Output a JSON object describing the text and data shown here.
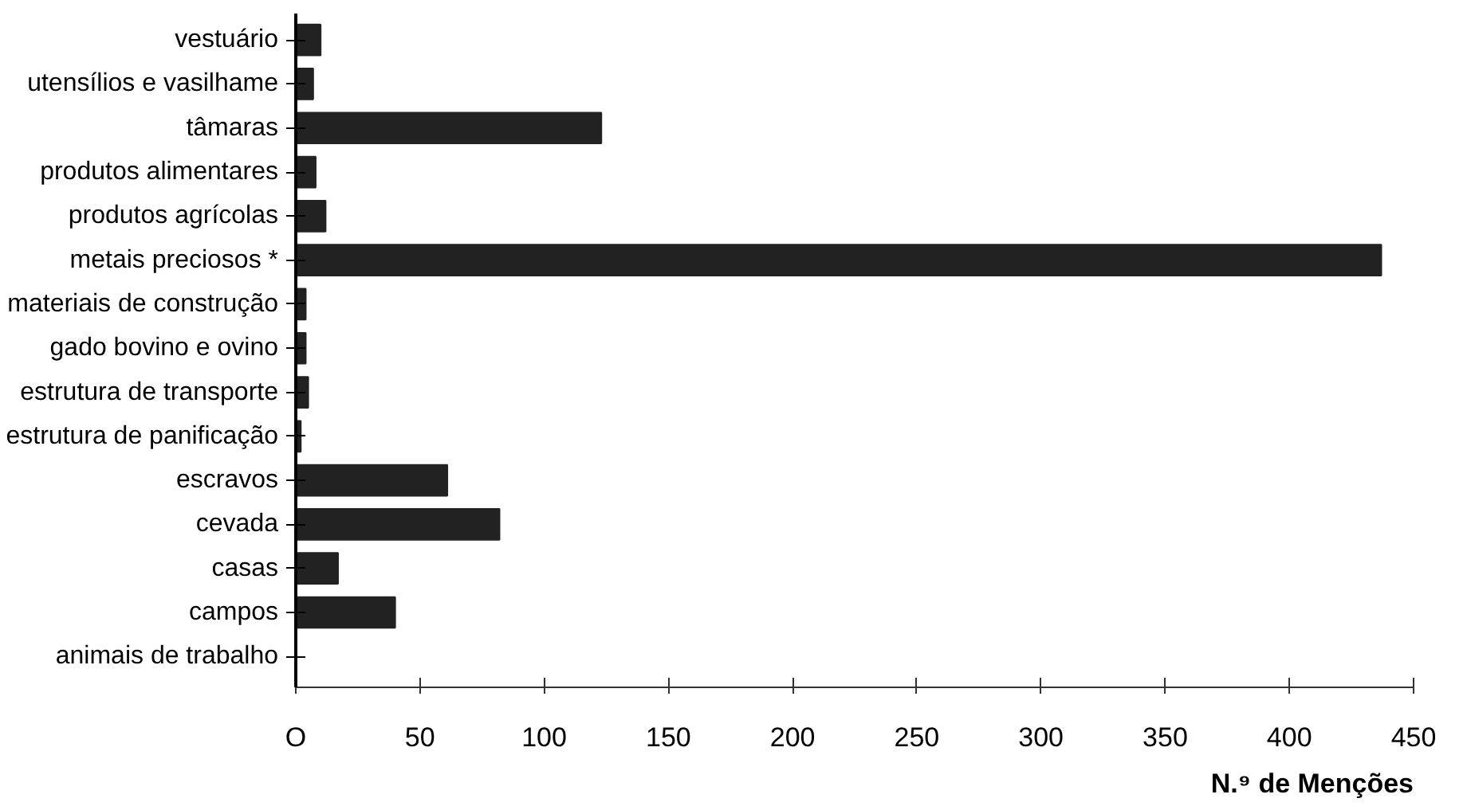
{
  "chart_data": {
    "type": "bar",
    "orientation": "horizontal",
    "categories": [
      "vestuário",
      "utensílios e vasilhame",
      "tâmaras",
      "produtos alimentares",
      "produtos agrícolas",
      "metais preciosos *",
      "materiais de construção",
      "gado bovino e ovino",
      "estrutura de transporte",
      "estrutura de panificação",
      "escravos",
      "cevada",
      "casas",
      "campos",
      "animais de trabalho"
    ],
    "values": [
      10,
      7,
      123,
      8,
      12,
      437,
      4,
      4,
      5,
      2,
      61,
      82,
      17,
      40,
      0
    ],
    "color": "#222222",
    "xlim": [
      0,
      450
    ],
    "xticks": [
      {
        "value": 0,
        "label": "O"
      },
      50,
      100,
      150,
      200,
      250,
      300,
      350,
      400,
      450
    ],
    "xlabel": "N.⁹ de Menções"
  }
}
